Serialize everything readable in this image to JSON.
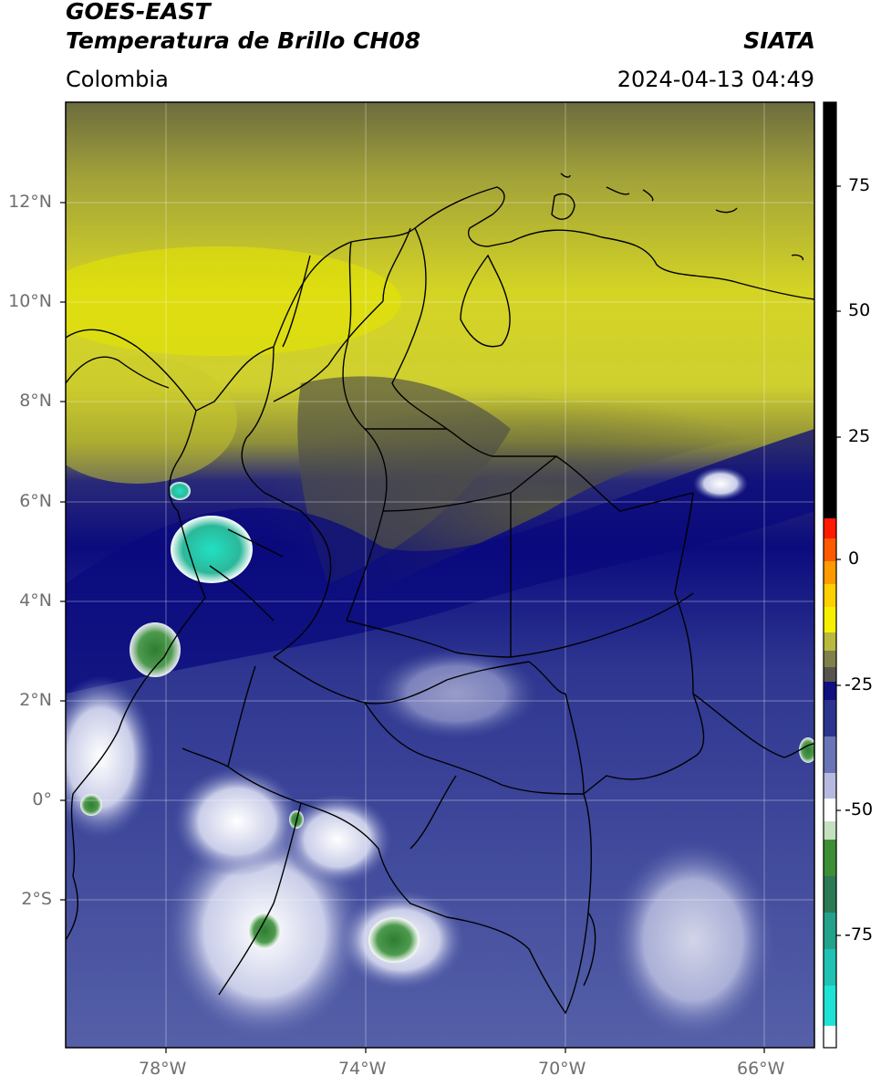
{
  "header": {
    "title_line1": "GOES-EAST",
    "title_line2": "Temperatura de Brillo CH08",
    "source": "SIATA",
    "region": "Colombia",
    "timestamp": "2024-04-13 04:49"
  },
  "map": {
    "lat_ticks": [
      "12°N",
      "10°N",
      "8°N",
      "6°N",
      "4°N",
      "2°N",
      "0°",
      "2°S"
    ],
    "lon_ticks": [
      "78°W",
      "74°W",
      "70°W",
      "66°W"
    ],
    "extent": {
      "lon_min": -80,
      "lon_max": -65,
      "lat_min": -4.6,
      "lat_max": 14
    }
  },
  "colorbar": {
    "ticks": [
      "75",
      "50",
      "25",
      "0",
      "-25",
      "-50",
      "-75"
    ],
    "range": [
      -95,
      90
    ],
    "colors": {
      "black": "#000000",
      "red": "#ff1a00",
      "orange": "#ffaa00",
      "yellow": "#e8e600",
      "olive": "#8f8f3a",
      "gray": "#5a5a50",
      "navy": "#0a0a7d",
      "slate": "#5560a8",
      "white": "#ffffff",
      "green": "#2e8b2e",
      "teal": "#1fd6c0"
    }
  }
}
